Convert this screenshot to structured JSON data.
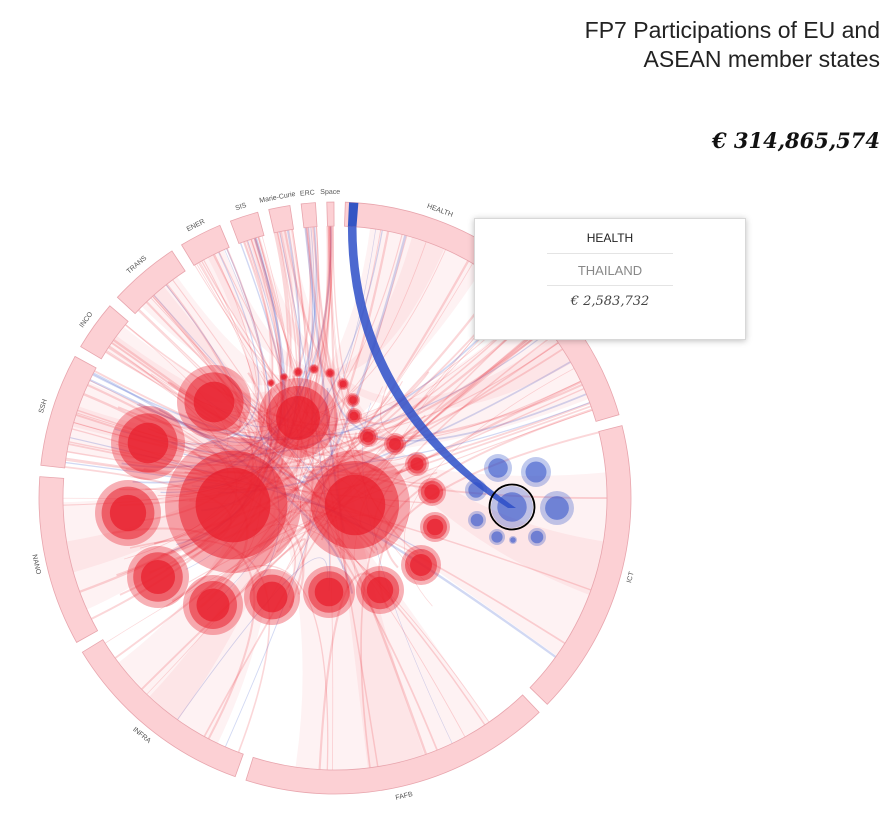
{
  "title": "FP7 Participations of EU and ASEAN member states",
  "total": "€ 314,865,574",
  "tooltip": {
    "category": "HEALTH",
    "country": "THAILAND",
    "value": "€ 2,583,732"
  },
  "colors": {
    "eu": "#e8202e",
    "asean": "#2d4fc8",
    "segment_fill": "#fcd0d4",
    "segment_highlight": "#3355c4",
    "selected_outline": "#000000"
  },
  "chart_data": {
    "type": "chord",
    "title": "FP7 Participations of EU and ASEAN member states",
    "value_text": "€ 314,865,574",
    "categories": [
      "HEALTH",
      "ENV",
      "ICT",
      "FAFB",
      "INFRA",
      "NANO",
      "SSH",
      "INCO",
      "TRANS",
      "ENER",
      "SIS",
      "Marie-Curie",
      "ERC",
      "Space"
    ],
    "category_weights": [
      26,
      24,
      42,
      44,
      28,
      24,
      16,
      7,
      10,
      6,
      4,
      3,
      2,
      1
    ],
    "groups": [
      {
        "name": "EU",
        "color": "#e8202e"
      },
      {
        "name": "ASEAN",
        "color": "#2d4fc8"
      }
    ],
    "highlighted": {
      "category": "HEALTH",
      "country": "THAILAND",
      "value": 2583732
    }
  }
}
